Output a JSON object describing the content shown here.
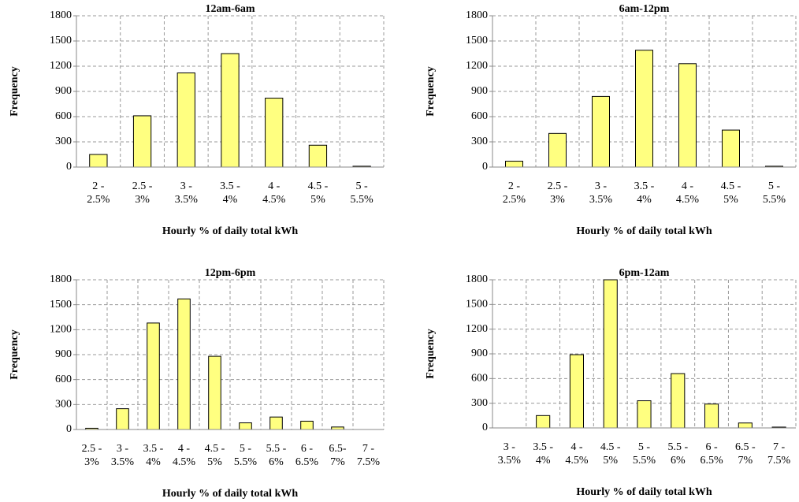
{
  "chart_data": [
    {
      "type": "bar",
      "title": "12am-6am",
      "x_label": "Hourly % of daily total kWh",
      "y_label": "Frequency",
      "categories": [
        [
          "2 -",
          "2.5%"
        ],
        [
          "2.5 -",
          "3%"
        ],
        [
          "3 -",
          "3.5%"
        ],
        [
          "3.5 -",
          "4%"
        ],
        [
          "4 -",
          "4.5%"
        ],
        [
          "4.5 -",
          "5%"
        ],
        [
          "5 -",
          "5.5%"
        ]
      ],
      "values": [
        150,
        610,
        1120,
        1350,
        820,
        260,
        10
      ],
      "color": "#ffff80",
      "ylim": [
        0,
        1800
      ],
      "yticks": [
        0,
        300,
        600,
        900,
        1200,
        1500,
        1800
      ],
      "grid": true
    },
    {
      "type": "bar",
      "title": "6am-12pm",
      "x_label": "Hourly % of daily total kWh",
      "y_label": "Frequency",
      "categories": [
        [
          "2 -",
          "2.5%"
        ],
        [
          "2.5 -",
          "3%"
        ],
        [
          "3 -",
          "3.5%"
        ],
        [
          "3.5 -",
          "4%"
        ],
        [
          "4 -",
          "4.5%"
        ],
        [
          "4.5 -",
          "5%"
        ],
        [
          "5 -",
          "5.5%"
        ]
      ],
      "values": [
        70,
        400,
        840,
        1390,
        1230,
        440,
        10
      ],
      "color": "#ffff80",
      "ylim": [
        0,
        1800
      ],
      "yticks": [
        0,
        300,
        600,
        900,
        1200,
        1500,
        1800
      ],
      "grid": true
    },
    {
      "type": "bar",
      "title": "12pm-6pm",
      "x_label": "Hourly % of daily total kWh",
      "y_label": "Frequency",
      "categories": [
        [
          "2.5 -",
          "3%"
        ],
        [
          "3 -",
          "3.5%"
        ],
        [
          "3.5 -",
          "4%"
        ],
        [
          "4 -",
          "4.5%"
        ],
        [
          "4.5 -",
          "5%"
        ],
        [
          "5 -",
          "5.5%"
        ],
        [
          "5.5 -",
          "6%"
        ],
        [
          "6 -",
          "6.5%"
        ],
        [
          "6.5-",
          "7%"
        ],
        [
          "7 -",
          "7.5%"
        ]
      ],
      "values": [
        15,
        250,
        1280,
        1570,
        880,
        80,
        150,
        100,
        30,
        0
      ],
      "color": "#ffff80",
      "ylim": [
        0,
        1800
      ],
      "yticks": [
        0,
        300,
        600,
        900,
        1200,
        1500,
        1800
      ],
      "grid": true
    },
    {
      "type": "bar",
      "title": "6pm-12am",
      "x_label": "Hourly % of daily total kWh",
      "y_label": "Frequency",
      "categories": [
        [
          "3 -",
          "3.5%"
        ],
        [
          "3.5 -",
          "4%"
        ],
        [
          "4 -",
          "4.5%"
        ],
        [
          "4.5 -",
          "5%"
        ],
        [
          "5 -",
          "5.5%"
        ],
        [
          "5.5 -",
          "6%"
        ],
        [
          "6 -",
          "6.5%"
        ],
        [
          "6.5 -",
          "7%"
        ],
        [
          "7 -",
          "7.5%"
        ]
      ],
      "values": [
        0,
        150,
        890,
        1800,
        330,
        660,
        290,
        60,
        10
      ],
      "color": "#ffff80",
      "ylim": [
        0,
        1800
      ],
      "yticks": [
        0,
        300,
        600,
        900,
        1200,
        1500,
        1800
      ],
      "grid": true
    }
  ]
}
